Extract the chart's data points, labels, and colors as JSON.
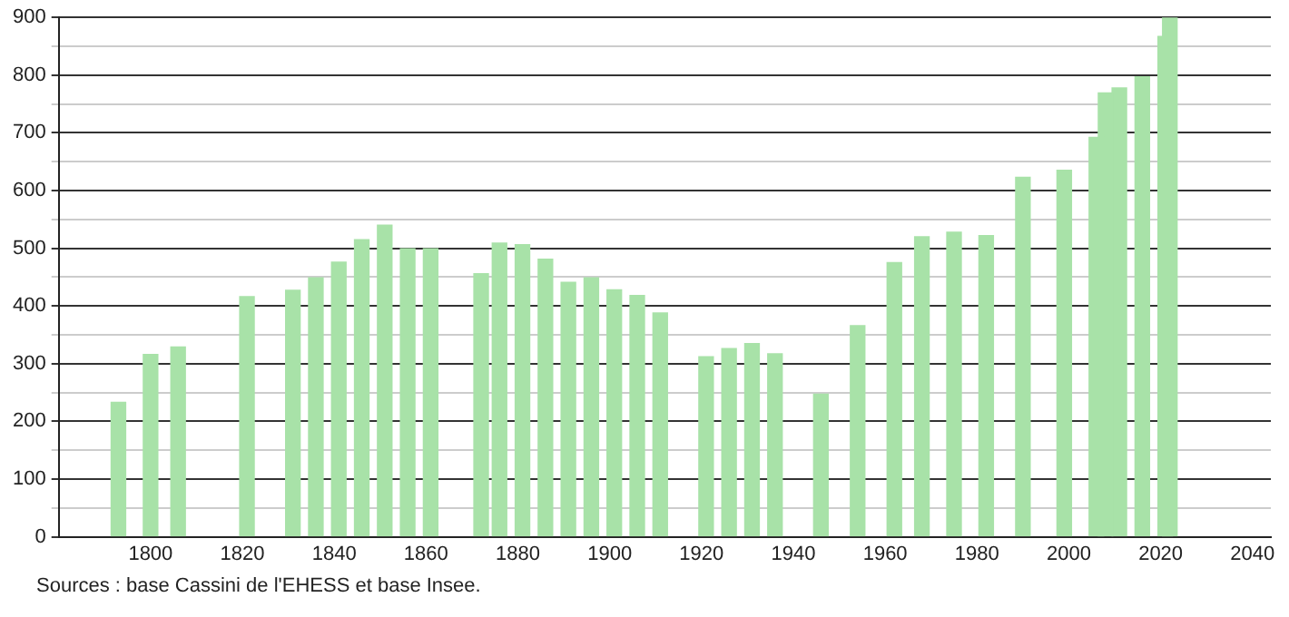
{
  "chart_data": {
    "type": "bar",
    "color": "#a8e2a8",
    "x": [
      1793,
      1800,
      1806,
      1821,
      1831,
      1836,
      1841,
      1846,
      1851,
      1856,
      1861,
      1872,
      1876,
      1881,
      1886,
      1891,
      1896,
      1901,
      1906,
      1911,
      1921,
      1926,
      1931,
      1936,
      1946,
      1954,
      1962,
      1968,
      1975,
      1982,
      1990,
      1999,
      2006,
      2008,
      2011,
      2016,
      2021,
      2022
    ],
    "values": [
      233,
      316,
      329,
      416,
      427,
      449,
      476,
      515,
      540,
      499,
      499,
      456,
      509,
      506,
      481,
      441,
      449,
      428,
      418,
      388,
      312,
      326,
      335,
      317,
      247,
      366,
      475,
      520,
      528,
      522,
      623,
      635,
      692,
      769,
      778,
      797,
      867,
      900
    ],
    "xlim": [
      1780,
      2044
    ],
    "xticks": [
      1800,
      1820,
      1840,
      1860,
      1880,
      1900,
      1920,
      1940,
      1960,
      1980,
      2000,
      2020,
      2040
    ],
    "ylim": [
      0,
      900
    ],
    "yticks": [
      0,
      {
        "value": 50,
        "label": null
      },
      100,
      {
        "value": 150,
        "label": null
      },
      200,
      {
        "value": 250,
        "label": null
      },
      300,
      {
        "value": 350,
        "label": null
      },
      400,
      {
        "value": 450,
        "label": null
      },
      500,
      {
        "value": 550,
        "label": null
      },
      600,
      {
        "value": 650,
        "label": null
      },
      700,
      {
        "value": 750,
        "label": null
      },
      800,
      {
        "value": 850,
        "label": null
      },
      900
    ],
    "grid": "y",
    "legend": false,
    "annotations": [
      "Sources : base Cassini de l'EHESS et base Insee."
    ]
  }
}
